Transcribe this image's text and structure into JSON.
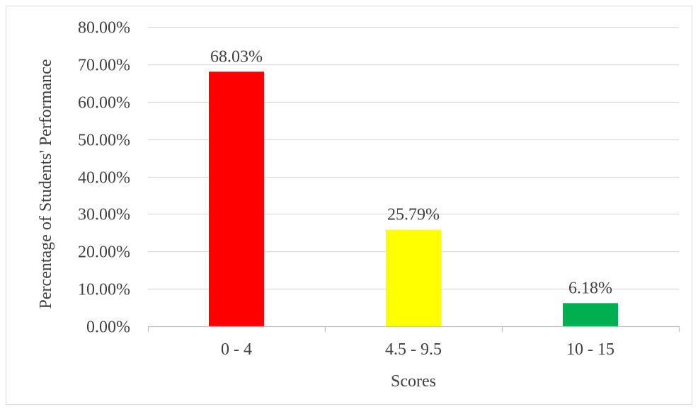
{
  "chart_data": {
    "type": "bar",
    "categories": [
      "0 - 4",
      "4.5 - 9.5",
      "10 - 15"
    ],
    "values": [
      68.03,
      25.79,
      6.18
    ],
    "data_labels": [
      "68.03%",
      "25.79%",
      "6.18%"
    ],
    "bar_colors": [
      "#ff0000",
      "#ffff00",
      "#00b050"
    ],
    "xlabel": "Scores",
    "ylabel": "Percentage of Students' Performance",
    "ylim": [
      0,
      80
    ],
    "yticks": [
      0,
      10,
      20,
      30,
      40,
      50,
      60,
      70,
      80
    ],
    "ytick_labels": [
      "0.00%",
      "10.00%",
      "20.00%",
      "30.00%",
      "40.00%",
      "50.00%",
      "60.00%",
      "70.00%",
      "80.00%"
    ],
    "grid": true,
    "legend": "none"
  },
  "colors": {
    "gridline": "#d9d9d9",
    "axis": "#bfbfbf",
    "text": "#404040",
    "border": "#d9d9d9"
  }
}
